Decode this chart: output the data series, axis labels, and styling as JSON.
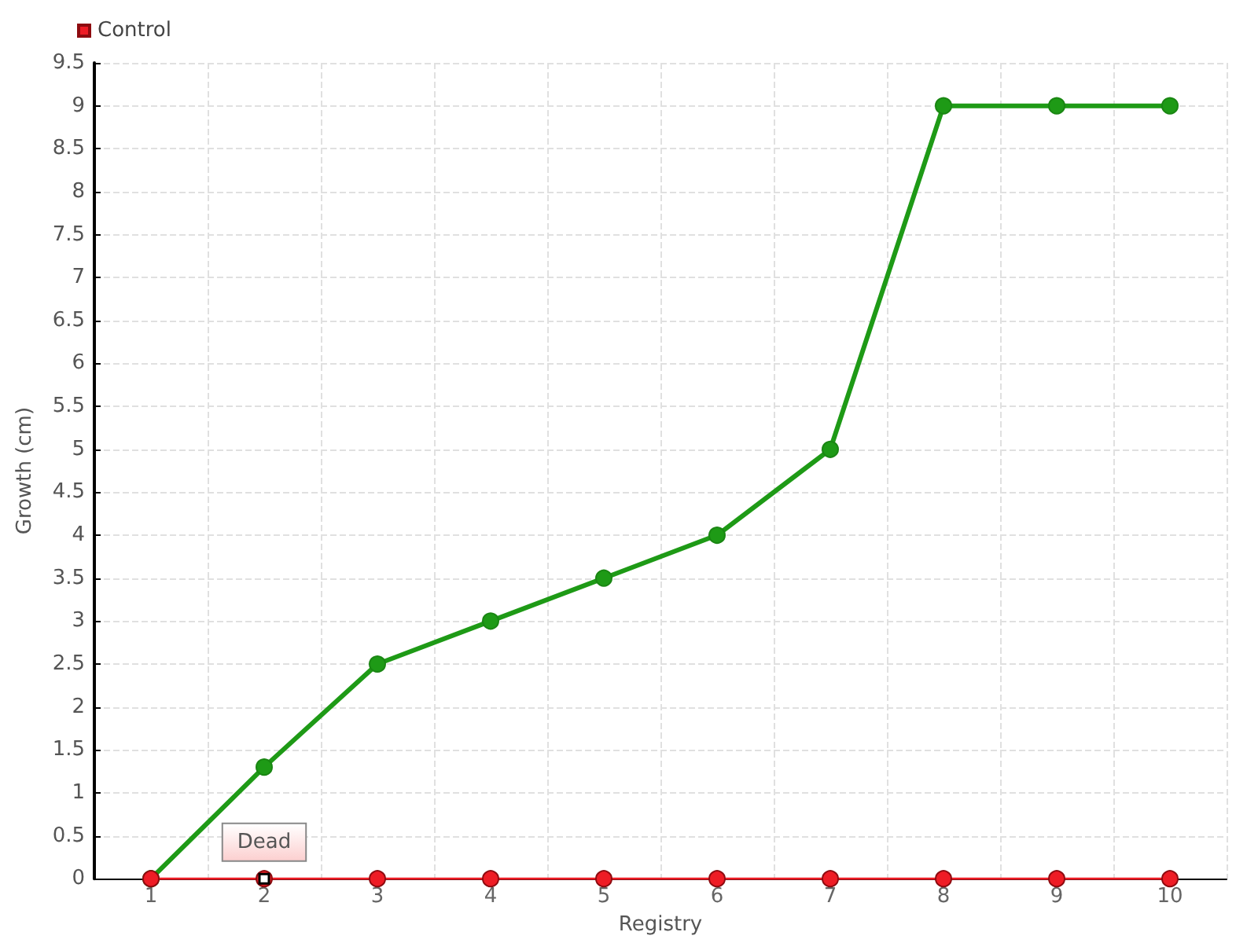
{
  "chart_data": {
    "type": "line",
    "xlabel": "Registry",
    "ylabel": "Growth (cm)",
    "categories": [
      "1",
      "2",
      "3",
      "4",
      "5",
      "6",
      "7",
      "8",
      "9",
      "10"
    ],
    "series": [
      {
        "color": "#1e9a16",
        "values": [
          0,
          1.3,
          2.5,
          3,
          3.5,
          4,
          5,
          9,
          9,
          9
        ]
      },
      {
        "name": "Control",
        "color": "#ee1c25",
        "values": [
          0,
          0,
          0,
          0,
          0,
          0,
          0,
          0,
          0,
          0
        ]
      }
    ],
    "ylim": [
      0,
      9.5
    ],
    "yticks": [
      0,
      0.5,
      1,
      1.5,
      2,
      2.5,
      3,
      3.5,
      4,
      4.5,
      5,
      5.5,
      6,
      6.5,
      7,
      7.5,
      8,
      8.5,
      9,
      9.5
    ],
    "annotations": [
      {
        "text": "Dead",
        "x": "2",
        "y": 0
      }
    ],
    "grid": true,
    "legend": "top left",
    "marker": "circle",
    "line_style": "solid"
  }
}
